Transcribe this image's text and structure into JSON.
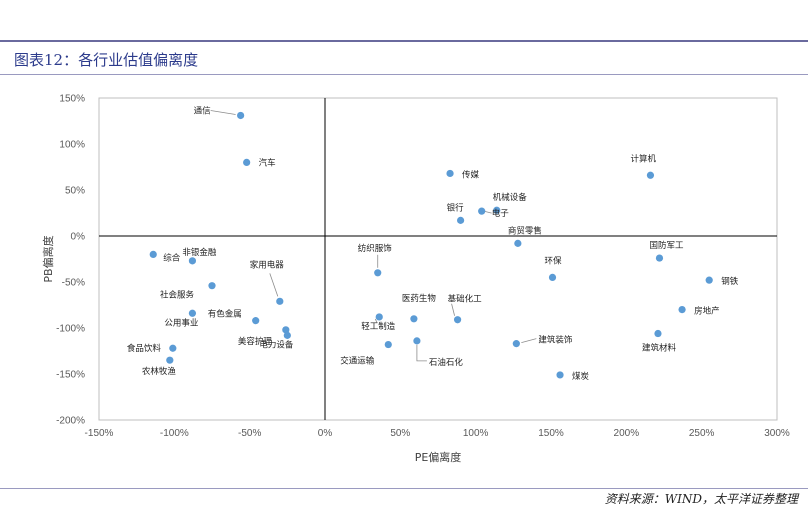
{
  "header": {
    "title": "图表12：各行业估值偏离度"
  },
  "footer": {
    "source": "资料来源：WIND，太平洋证券整理"
  },
  "chart_data": {
    "type": "scatter",
    "title": "图表12：各行业估值偏离度",
    "xlabel": "PE偏离度",
    "ylabel": "PB偏离度",
    "xlim": [
      -150,
      300
    ],
    "ylim": [
      -200,
      150
    ],
    "x_ticks": [
      "-150%",
      "-100%",
      "-50%",
      "0%",
      "50%",
      "100%",
      "150%",
      "200%",
      "250%",
      "300%"
    ],
    "y_ticks": [
      "150%",
      "100%",
      "50%",
      "0%",
      "-50%",
      "-100%",
      "-150%",
      "-200%"
    ],
    "grid": false,
    "color": "#5b9bd5",
    "points": [
      {
        "name": "通信",
        "x": -56,
        "y": 131
      },
      {
        "name": "汽车",
        "x": -52,
        "y": 80
      },
      {
        "name": "综合",
        "x": -114,
        "y": -20
      },
      {
        "name": "非银金融",
        "x": -88,
        "y": -27
      },
      {
        "name": "社会服务",
        "x": -75,
        "y": -54
      },
      {
        "name": "公用事业",
        "x": -88,
        "y": -84
      },
      {
        "name": "有色金属",
        "x": -46,
        "y": -92
      },
      {
        "name": "家用电器",
        "x": -30,
        "y": -71
      },
      {
        "name": "美容护理",
        "x": -26,
        "y": -102
      },
      {
        "name": "电力设备",
        "x": -25,
        "y": -108
      },
      {
        "name": "食品饮料",
        "x": -101,
        "y": -122
      },
      {
        "name": "农林牧渔",
        "x": -103,
        "y": -135
      },
      {
        "name": "传媒",
        "x": 83,
        "y": 68
      },
      {
        "name": "机械设备",
        "x": 114,
        "y": 28
      },
      {
        "name": "电子",
        "x": 104,
        "y": 27
      },
      {
        "name": "银行",
        "x": 90,
        "y": 17
      },
      {
        "name": "商贸零售",
        "x": 128,
        "y": -8
      },
      {
        "name": "环保",
        "x": 151,
        "y": -45
      },
      {
        "name": "纺织服饰",
        "x": 35,
        "y": -40
      },
      {
        "name": "轻工制造",
        "x": 36,
        "y": -88
      },
      {
        "name": "医药生物",
        "x": 59,
        "y": -90
      },
      {
        "name": "基础化工",
        "x": 88,
        "y": -91
      },
      {
        "name": "交通运输",
        "x": 42,
        "y": -118
      },
      {
        "name": "石油石化",
        "x": 61,
        "y": -114
      },
      {
        "name": "建筑装饰",
        "x": 127,
        "y": -117
      },
      {
        "name": "煤炭",
        "x": 156,
        "y": -151
      },
      {
        "name": "计算机",
        "x": 216,
        "y": 66
      },
      {
        "name": "国防军工",
        "x": 222,
        "y": -24
      },
      {
        "name": "钢铁",
        "x": 255,
        "y": -48
      },
      {
        "name": "房地产",
        "x": 237,
        "y": -80
      },
      {
        "name": "建筑材料",
        "x": 221,
        "y": -106
      }
    ]
  }
}
